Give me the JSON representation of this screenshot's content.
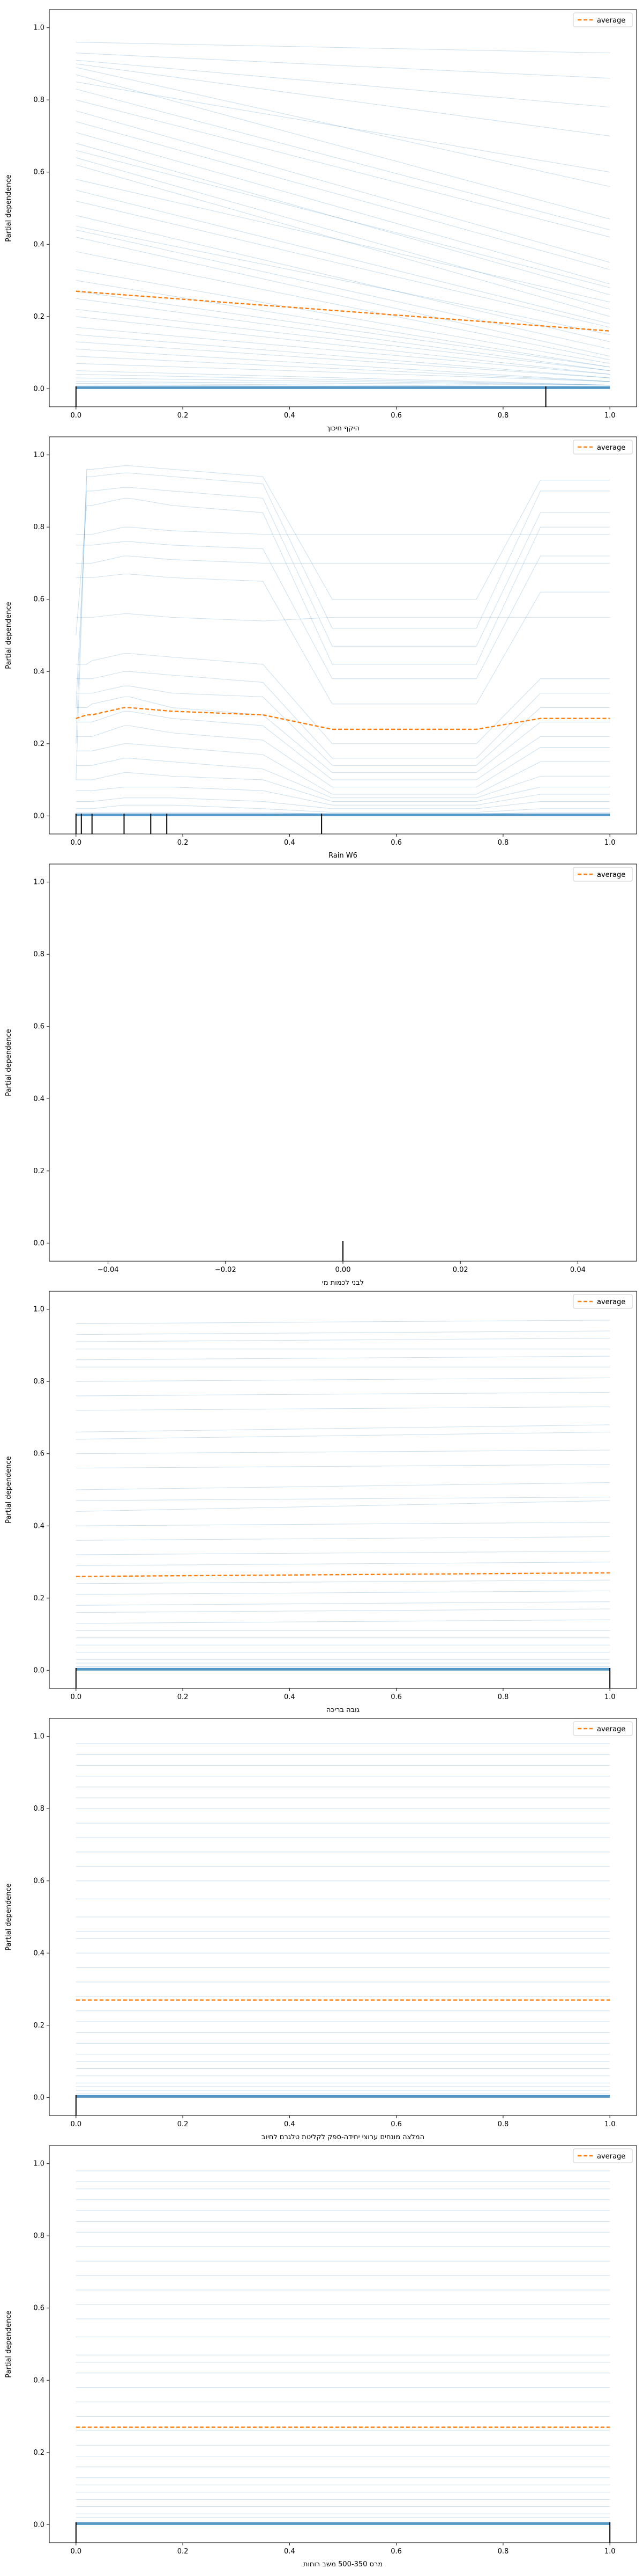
{
  "chart_data": [
    {
      "type": "line",
      "xlabel": "היקף חיכוך",
      "ylabel": "Partial dependence",
      "xlim": [
        -0.05,
        1.05
      ],
      "ylim": [
        -0.05,
        1.05
      ],
      "xticks": [
        "0.0",
        "0.2",
        "0.4",
        "0.6",
        "0.8",
        "1.0"
      ],
      "yticks": [
        "0.0",
        "0.2",
        "0.4",
        "0.6",
        "0.8",
        "1.0"
      ],
      "legend": {
        "label": "average",
        "position": "top-right"
      },
      "x": [
        0,
        1
      ],
      "average": [
        0.27,
        0.16
      ],
      "ice_lines": [
        [
          0.96,
          0.93
        ],
        [
          0.93,
          0.86
        ],
        [
          0.91,
          0.78
        ],
        [
          0.9,
          0.7
        ],
        [
          0.89,
          0.56
        ],
        [
          0.87,
          0.47
        ],
        [
          0.85,
          0.6
        ],
        [
          0.83,
          0.44
        ],
        [
          0.8,
          0.42
        ],
        [
          0.77,
          0.35
        ],
        [
          0.74,
          0.33
        ],
        [
          0.71,
          0.29
        ],
        [
          0.68,
          0.26
        ],
        [
          0.66,
          0.28
        ],
        [
          0.64,
          0.22
        ],
        [
          0.62,
          0.2
        ],
        [
          0.58,
          0.24
        ],
        [
          0.55,
          0.18
        ],
        [
          0.52,
          0.17
        ],
        [
          0.48,
          0.13
        ],
        [
          0.45,
          0.15
        ],
        [
          0.44,
          0.11
        ],
        [
          0.42,
          0.09
        ],
        [
          0.38,
          0.08
        ],
        [
          0.33,
          0.07
        ],
        [
          0.3,
          0.06
        ],
        [
          0.27,
          0.06
        ],
        [
          0.25,
          0.05
        ],
        [
          0.22,
          0.05
        ],
        [
          0.2,
          0.04
        ],
        [
          0.17,
          0.04
        ],
        [
          0.15,
          0.03
        ],
        [
          0.13,
          0.03
        ],
        [
          0.11,
          0.02
        ],
        [
          0.09,
          0.02
        ],
        [
          0.07,
          0.02
        ],
        [
          0.05,
          0.01
        ],
        [
          0.04,
          0.01
        ],
        [
          0.03,
          0.01
        ],
        [
          0.02,
          0.01
        ],
        [
          0.015,
          0.005
        ],
        [
          0.01,
          0.004
        ]
      ],
      "rug": [
        0.0,
        0.88
      ]
    },
    {
      "type": "line",
      "xlabel": "Rain W6",
      "ylabel": "Partial dependence",
      "xlim": [
        -0.05,
        1.05
      ],
      "ylim": [
        -0.05,
        1.05
      ],
      "xticks": [
        "0.0",
        "0.2",
        "0.4",
        "0.6",
        "0.8",
        "1.0"
      ],
      "yticks": [
        "0.0",
        "0.2",
        "0.4",
        "0.6",
        "0.8",
        "1.0"
      ],
      "legend": {
        "label": "average",
        "position": "top-right"
      },
      "x": [
        0,
        0.02,
        0.03,
        0.09,
        0.1,
        0.18,
        0.35,
        0.48,
        0.75,
        0.87,
        1.0
      ],
      "average": [
        0.27,
        0.28,
        0.28,
        0.3,
        0.3,
        0.29,
        0.28,
        0.24,
        0.24,
        0.27,
        0.27
      ],
      "ice_lines": [
        [
          0.1,
          0.96,
          0.96,
          0.97,
          0.97,
          0.96,
          0.94,
          0.6,
          0.6,
          0.93,
          0.93
        ],
        [
          0.2,
          0.94,
          0.94,
          0.95,
          0.95,
          0.94,
          0.92,
          0.52,
          0.52,
          0.9,
          0.9
        ],
        [
          0.3,
          0.9,
          0.9,
          0.91,
          0.91,
          0.9,
          0.88,
          0.47,
          0.47,
          0.84,
          0.84
        ],
        [
          0.5,
          0.86,
          0.86,
          0.88,
          0.88,
          0.86,
          0.84,
          0.42,
          0.42,
          0.8,
          0.8
        ],
        [
          0.78,
          0.78,
          0.78,
          0.8,
          0.8,
          0.79,
          0.78,
          0.78,
          0.78,
          0.78,
          0.78
        ],
        [
          0.75,
          0.75,
          0.75,
          0.76,
          0.76,
          0.75,
          0.74,
          0.38,
          0.38,
          0.72,
          0.72
        ],
        [
          0.7,
          0.7,
          0.7,
          0.72,
          0.72,
          0.71,
          0.7,
          0.7,
          0.7,
          0.7,
          0.7
        ],
        [
          0.66,
          0.66,
          0.66,
          0.67,
          0.67,
          0.66,
          0.65,
          0.31,
          0.31,
          0.62,
          0.62
        ],
        [
          0.55,
          0.55,
          0.55,
          0.56,
          0.56,
          0.55,
          0.54,
          0.55,
          0.55,
          0.55,
          0.55
        ],
        [
          0.42,
          0.42,
          0.43,
          0.45,
          0.45,
          0.44,
          0.42,
          0.2,
          0.2,
          0.38,
          0.38
        ],
        [
          0.38,
          0.38,
          0.38,
          0.4,
          0.4,
          0.39,
          0.37,
          0.16,
          0.16,
          0.34,
          0.34
        ],
        [
          0.34,
          0.34,
          0.34,
          0.36,
          0.36,
          0.34,
          0.33,
          0.14,
          0.14,
          0.3,
          0.3
        ],
        [
          0.3,
          0.3,
          0.31,
          0.33,
          0.33,
          0.3,
          0.28,
          0.12,
          0.12,
          0.26,
          0.26
        ],
        [
          0.26,
          0.26,
          0.26,
          0.29,
          0.29,
          0.27,
          0.25,
          0.1,
          0.1,
          0.22,
          0.22
        ],
        [
          0.22,
          0.22,
          0.22,
          0.25,
          0.25,
          0.23,
          0.21,
          0.08,
          0.08,
          0.19,
          0.19
        ],
        [
          0.18,
          0.18,
          0.18,
          0.2,
          0.2,
          0.19,
          0.17,
          0.06,
          0.06,
          0.15,
          0.15
        ],
        [
          0.14,
          0.14,
          0.14,
          0.16,
          0.16,
          0.15,
          0.13,
          0.05,
          0.05,
          0.11,
          0.11
        ],
        [
          0.1,
          0.1,
          0.1,
          0.12,
          0.12,
          0.11,
          0.1,
          0.04,
          0.04,
          0.08,
          0.08
        ],
        [
          0.07,
          0.07,
          0.07,
          0.08,
          0.08,
          0.08,
          0.07,
          0.03,
          0.03,
          0.06,
          0.06
        ],
        [
          0.04,
          0.04,
          0.04,
          0.05,
          0.05,
          0.05,
          0.04,
          0.02,
          0.02,
          0.04,
          0.04
        ],
        [
          0.02,
          0.02,
          0.02,
          0.03,
          0.03,
          0.03,
          0.02,
          0.01,
          0.01,
          0.02,
          0.02
        ],
        [
          0.01,
          0.01,
          0.01,
          0.01,
          0.01,
          0.01,
          0.01,
          0.005,
          0.005,
          0.01,
          0.01
        ]
      ],
      "rug": [
        0.0,
        0.01,
        0.03,
        0.09,
        0.14,
        0.17,
        0.46
      ]
    },
    {
      "type": "line",
      "xlabel": "לבני לכמות מי",
      "ylabel": "Partial dependence",
      "xlim": [
        -0.05,
        0.05
      ],
      "ylim": [
        -0.05,
        1.05
      ],
      "xticks": [
        "−0.04",
        "−0.02",
        "0.00",
        "0.02",
        "0.04"
      ],
      "xtick_values": [
        -0.04,
        -0.02,
        0.0,
        0.02,
        0.04
      ],
      "yticks": [
        "0.0",
        "0.2",
        "0.4",
        "0.6",
        "0.8",
        "1.0"
      ],
      "legend": {
        "label": "average",
        "position": "top-right"
      },
      "x": [],
      "average": [],
      "ice_lines": [],
      "rug": [
        0.0
      ]
    },
    {
      "type": "line",
      "xlabel": "גובה בריכה",
      "ylabel": "Partial dependence",
      "xlim": [
        -0.05,
        1.05
      ],
      "ylim": [
        -0.05,
        1.05
      ],
      "xticks": [
        "0.0",
        "0.2",
        "0.4",
        "0.6",
        "0.8",
        "1.0"
      ],
      "yticks": [
        "0.0",
        "0.2",
        "0.4",
        "0.6",
        "0.8",
        "1.0"
      ],
      "legend": {
        "label": "average",
        "position": "top-right"
      },
      "x": [
        0,
        1
      ],
      "average": [
        0.26,
        0.27
      ],
      "ice_lines": [
        [
          0.96,
          0.97
        ],
        [
          0.93,
          0.94
        ],
        [
          0.91,
          0.92
        ],
        [
          0.89,
          0.89
        ],
        [
          0.86,
          0.87
        ],
        [
          0.84,
          0.84
        ],
        [
          0.8,
          0.81
        ],
        [
          0.76,
          0.77
        ],
        [
          0.72,
          0.73
        ],
        [
          0.66,
          0.68
        ],
        [
          0.64,
          0.66
        ],
        [
          0.6,
          0.61
        ],
        [
          0.56,
          0.57
        ],
        [
          0.5,
          0.52
        ],
        [
          0.47,
          0.48
        ],
        [
          0.44,
          0.47
        ],
        [
          0.4,
          0.41
        ],
        [
          0.36,
          0.37
        ],
        [
          0.32,
          0.33
        ],
        [
          0.29,
          0.3
        ],
        [
          0.24,
          0.25
        ],
        [
          0.21,
          0.22
        ],
        [
          0.18,
          0.19
        ],
        [
          0.16,
          0.17
        ],
        [
          0.13,
          0.14
        ],
        [
          0.11,
          0.11
        ],
        [
          0.09,
          0.09
        ],
        [
          0.07,
          0.07
        ],
        [
          0.05,
          0.05
        ],
        [
          0.03,
          0.03
        ],
        [
          0.02,
          0.02
        ],
        [
          0.01,
          0.01
        ],
        [
          0.005,
          0.005
        ]
      ],
      "rug": [
        0.0,
        1.0
      ]
    },
    {
      "type": "line",
      "xlabel": "המלצה מונחים ערוצי יחידה-ספק לקליטת טלגרם לחיוב",
      "ylabel": "Partial dependence",
      "xlim": [
        -0.05,
        1.05
      ],
      "ylim": [
        -0.05,
        1.05
      ],
      "xticks": [
        "0.0",
        "0.2",
        "0.4",
        "0.6",
        "0.8",
        "1.0"
      ],
      "yticks": [
        "0.0",
        "0.2",
        "0.4",
        "0.6",
        "0.8",
        "1.0"
      ],
      "legend": {
        "label": "average",
        "position": "top-right"
      },
      "x": [
        0,
        1
      ],
      "average": [
        0.27,
        0.27
      ],
      "ice_lines": [
        [
          0.98,
          0.98
        ],
        [
          0.95,
          0.95
        ],
        [
          0.92,
          0.92
        ],
        [
          0.89,
          0.89
        ],
        [
          0.86,
          0.86
        ],
        [
          0.83,
          0.83
        ],
        [
          0.8,
          0.8
        ],
        [
          0.76,
          0.76
        ],
        [
          0.72,
          0.72
        ],
        [
          0.68,
          0.68
        ],
        [
          0.64,
          0.64
        ],
        [
          0.6,
          0.6
        ],
        [
          0.55,
          0.55
        ],
        [
          0.5,
          0.5
        ],
        [
          0.46,
          0.46
        ],
        [
          0.44,
          0.44
        ],
        [
          0.4,
          0.4
        ],
        [
          0.36,
          0.36
        ],
        [
          0.32,
          0.32
        ],
        [
          0.28,
          0.28
        ],
        [
          0.24,
          0.24
        ],
        [
          0.21,
          0.21
        ],
        [
          0.18,
          0.18
        ],
        [
          0.15,
          0.15
        ],
        [
          0.12,
          0.12
        ],
        [
          0.1,
          0.1
        ],
        [
          0.08,
          0.08
        ],
        [
          0.06,
          0.06
        ],
        [
          0.04,
          0.04
        ],
        [
          0.03,
          0.03
        ],
        [
          0.02,
          0.02
        ],
        [
          0.01,
          0.01
        ],
        [
          0.005,
          0.005
        ]
      ],
      "rug": [
        0.0
      ]
    },
    {
      "type": "line",
      "xlabel": "מרס 500-350 משב רוחות",
      "ylabel": "Partial dependence",
      "xlim": [
        -0.05,
        1.05
      ],
      "ylim": [
        -0.05,
        1.05
      ],
      "xticks": [
        "0.0",
        "0.2",
        "0.4",
        "0.6",
        "0.8",
        "1.0"
      ],
      "yticks": [
        "0.0",
        "0.2",
        "0.4",
        "0.6",
        "0.8",
        "1.0"
      ],
      "legend": {
        "label": "average",
        "position": "top-right"
      },
      "x": [
        0,
        1
      ],
      "average": [
        0.27,
        0.27
      ],
      "ice_lines": [
        [
          0.98,
          0.98
        ],
        [
          0.95,
          0.95
        ],
        [
          0.93,
          0.93
        ],
        [
          0.9,
          0.9
        ],
        [
          0.87,
          0.87
        ],
        [
          0.84,
          0.84
        ],
        [
          0.81,
          0.81
        ],
        [
          0.77,
          0.77
        ],
        [
          0.73,
          0.73
        ],
        [
          0.69,
          0.69
        ],
        [
          0.65,
          0.65
        ],
        [
          0.61,
          0.61
        ],
        [
          0.57,
          0.57
        ],
        [
          0.52,
          0.52
        ],
        [
          0.47,
          0.47
        ],
        [
          0.45,
          0.45
        ],
        [
          0.42,
          0.42
        ],
        [
          0.38,
          0.38
        ],
        [
          0.34,
          0.34
        ],
        [
          0.3,
          0.3
        ],
        [
          0.26,
          0.26
        ],
        [
          0.22,
          0.22
        ],
        [
          0.19,
          0.19
        ],
        [
          0.16,
          0.16
        ],
        [
          0.13,
          0.13
        ],
        [
          0.11,
          0.11
        ],
        [
          0.09,
          0.09
        ],
        [
          0.07,
          0.07
        ],
        [
          0.05,
          0.05
        ],
        [
          0.03,
          0.03
        ],
        [
          0.02,
          0.02
        ],
        [
          0.01,
          0.01
        ],
        [
          0.005,
          0.005
        ]
      ],
      "rug": [
        0.0,
        1.0
      ]
    }
  ],
  "colors": {
    "ice": "#1f77b4",
    "average": "#ff7f0e",
    "axis": "#000000",
    "background": "#ffffff"
  }
}
